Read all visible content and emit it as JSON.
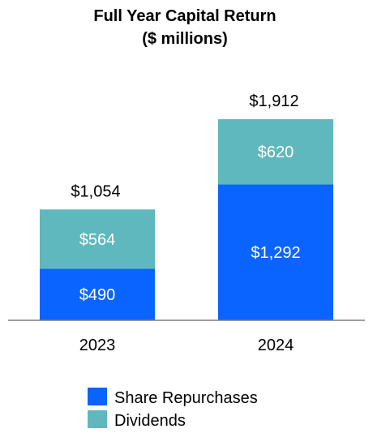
{
  "chart_data": {
    "type": "bar",
    "stacked": true,
    "title": "Full Year Capital Return",
    "subtitle": "($ millions)",
    "categories": [
      "2023",
      "2024"
    ],
    "series": [
      {
        "name": "Share Repurchases",
        "values": [
          490,
          1292
        ],
        "labels": [
          "$490",
          "$1,292"
        ],
        "color": "#0a64ff"
      },
      {
        "name": "Dividends",
        "values": [
          564,
          620
        ],
        "labels": [
          "$564",
          "$620"
        ],
        "color": "#5fb8bd"
      }
    ],
    "totals": [
      1054,
      1912
    ],
    "total_labels": [
      "$1,054",
      "$1,912"
    ],
    "ylim": [
      0,
      1912
    ],
    "grid": false,
    "legend": "bottom"
  }
}
